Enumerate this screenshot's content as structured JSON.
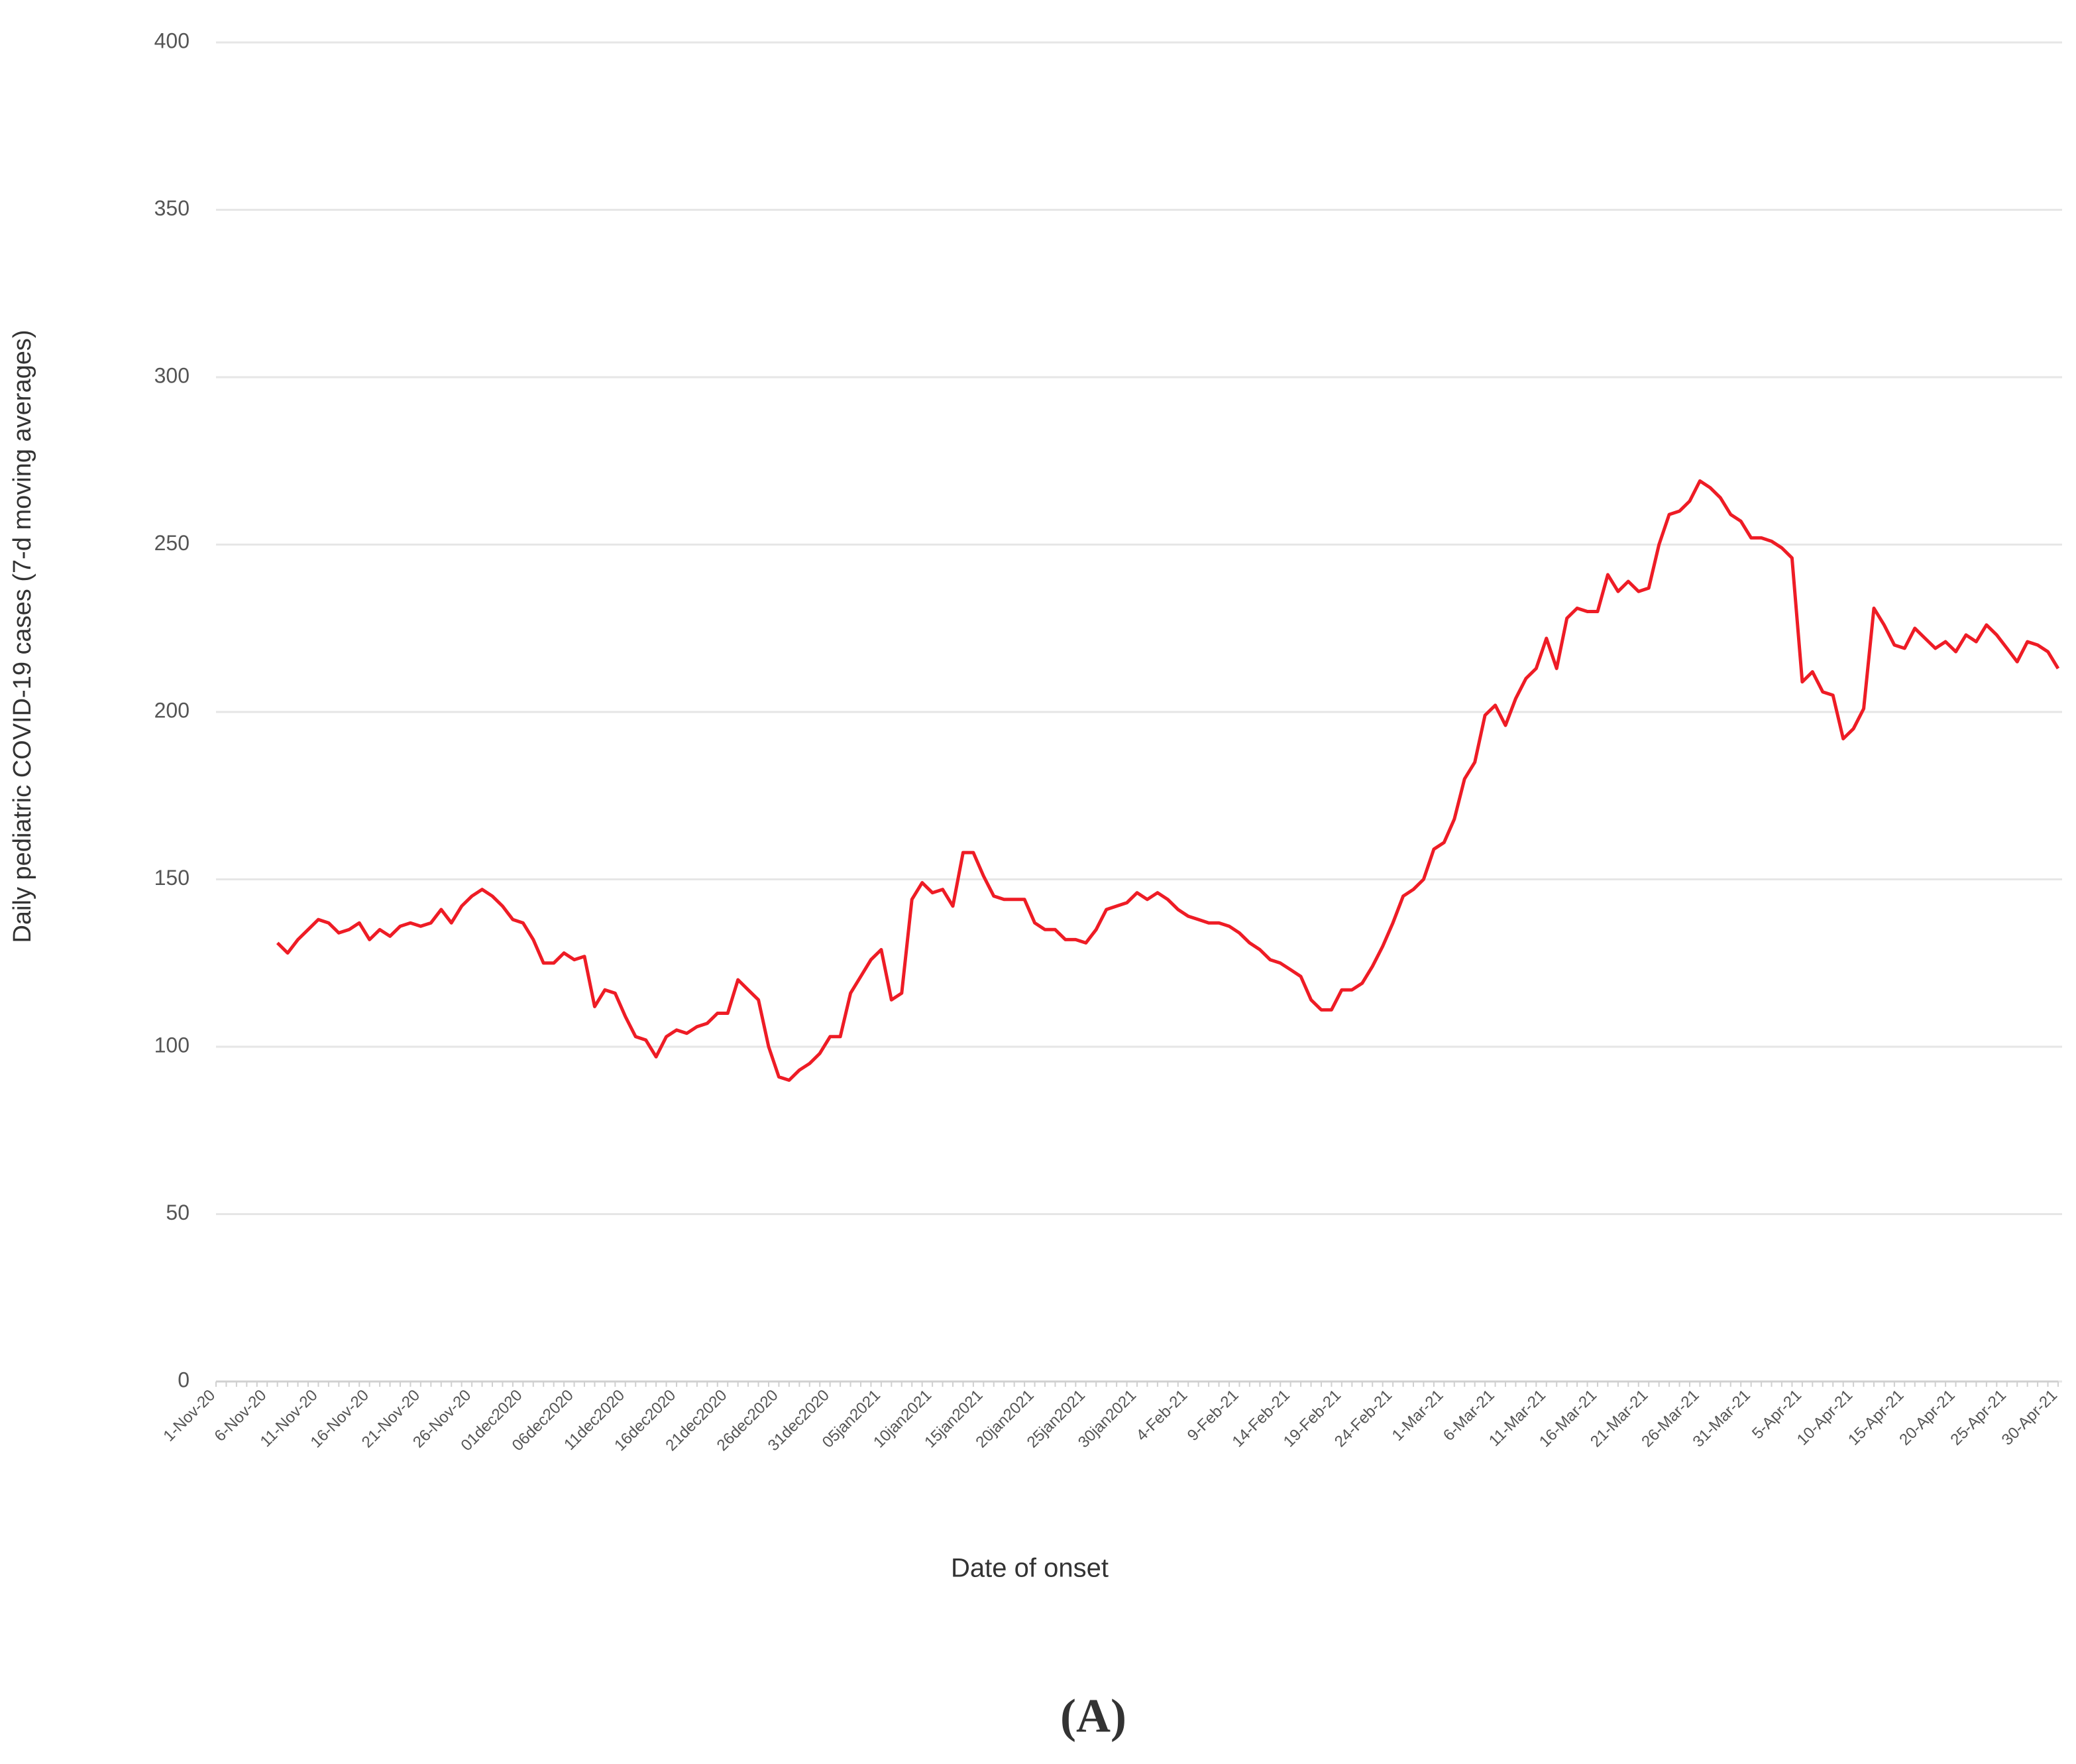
{
  "chart_data": {
    "type": "line",
    "y_label": "Daily pediatric COVID-19 cases (7-d moving averages)",
    "x_label": "Date of onset",
    "color": "#ee1c25",
    "ylim": [
      0,
      400
    ],
    "yticks": [
      0,
      50,
      100,
      150,
      200,
      250,
      300,
      350,
      400
    ],
    "grid": true,
    "categories": [
      "1-Nov-20",
      null,
      null,
      null,
      null,
      "6-Nov-20",
      null,
      null,
      null,
      null,
      "11-Nov-20",
      null,
      null,
      null,
      null,
      "16-Nov-20",
      null,
      null,
      null,
      null,
      "21-Nov-20",
      null,
      null,
      null,
      null,
      "26-Nov-20",
      null,
      null,
      null,
      null,
      "01dec2020",
      null,
      null,
      null,
      null,
      "06dec2020",
      null,
      null,
      null,
      null,
      "11dec2020",
      null,
      null,
      null,
      null,
      "16dec2020",
      null,
      null,
      null,
      null,
      "21dec2020",
      null,
      null,
      null,
      null,
      "26dec2020",
      null,
      null,
      null,
      null,
      "31dec2020",
      null,
      null,
      null,
      null,
      "05jan2021",
      null,
      null,
      null,
      null,
      "10jan2021",
      null,
      null,
      null,
      null,
      "15jan2021",
      null,
      null,
      null,
      null,
      "20jan2021",
      null,
      null,
      null,
      null,
      "25jan2021",
      null,
      null,
      null,
      null,
      "30jan2021",
      null,
      null,
      null,
      null,
      "4-Feb-21",
      null,
      null,
      null,
      null,
      "9-Feb-21",
      null,
      null,
      null,
      null,
      "14-Feb-21",
      null,
      null,
      null,
      null,
      "19-Feb-21",
      null,
      null,
      null,
      null,
      "24-Feb-21",
      null,
      null,
      null,
      null,
      "1-Mar-21",
      null,
      null,
      null,
      null,
      "6-Mar-21",
      null,
      null,
      null,
      null,
      "11-Mar-21",
      null,
      null,
      null,
      null,
      "16-Mar-21",
      null,
      null,
      null,
      null,
      "21-Mar-21",
      null,
      null,
      null,
      null,
      "26-Mar-21",
      null,
      null,
      null,
      null,
      "31-Mar-21",
      null,
      null,
      null,
      null,
      "5-Apr-21",
      null,
      null,
      null,
      null,
      "10-Apr-21",
      null,
      null,
      null,
      null,
      "15-Apr-21",
      null,
      null,
      null,
      null,
      "20-Apr-21",
      null,
      null,
      null,
      null,
      "25-Apr-21",
      null,
      null,
      null,
      null,
      "30-Apr-21"
    ],
    "values": [
      null,
      null,
      null,
      null,
      null,
      null,
      131,
      128,
      132,
      135,
      138,
      137,
      134,
      135,
      137,
      132,
      135,
      133,
      136,
      137,
      136,
      137,
      141,
      137,
      142,
      145,
      147,
      145,
      142,
      138,
      137,
      132,
      125,
      125,
      128,
      126,
      127,
      112,
      117,
      116,
      109,
      103,
      102,
      97,
      103,
      105,
      104,
      106,
      107,
      110,
      110,
      120,
      117,
      114,
      100,
      91,
      90,
      93,
      95,
      98,
      103,
      103,
      116,
      121,
      126,
      129,
      114,
      116,
      144,
      149,
      146,
      147,
      142,
      158,
      158,
      151,
      145,
      144,
      144,
      144,
      137,
      135,
      135,
      132,
      132,
      131,
      135,
      141,
      142,
      143,
      146,
      144,
      146,
      144,
      141,
      139,
      138,
      137,
      137,
      136,
      134,
      131,
      129,
      126,
      125,
      123,
      121,
      114,
      111,
      111,
      117,
      117,
      119,
      124,
      130,
      137,
      145,
      147,
      150,
      159,
      161,
      168,
      180,
      185,
      199,
      202,
      196,
      204,
      210,
      213,
      222,
      213,
      228,
      231,
      230,
      230,
      241,
      236,
      239,
      236,
      237,
      250,
      259,
      260,
      263,
      269,
      267,
      264,
      259,
      257,
      252,
      252,
      251,
      249,
      246,
      209,
      212,
      206,
      205,
      192,
      195,
      201,
      231,
      226,
      220,
      219,
      225,
      222,
      219,
      221,
      218,
      223,
      221,
      226,
      223,
      219,
      215,
      221,
      220,
      218,
      213
    ]
  },
  "caption": "(A)"
}
